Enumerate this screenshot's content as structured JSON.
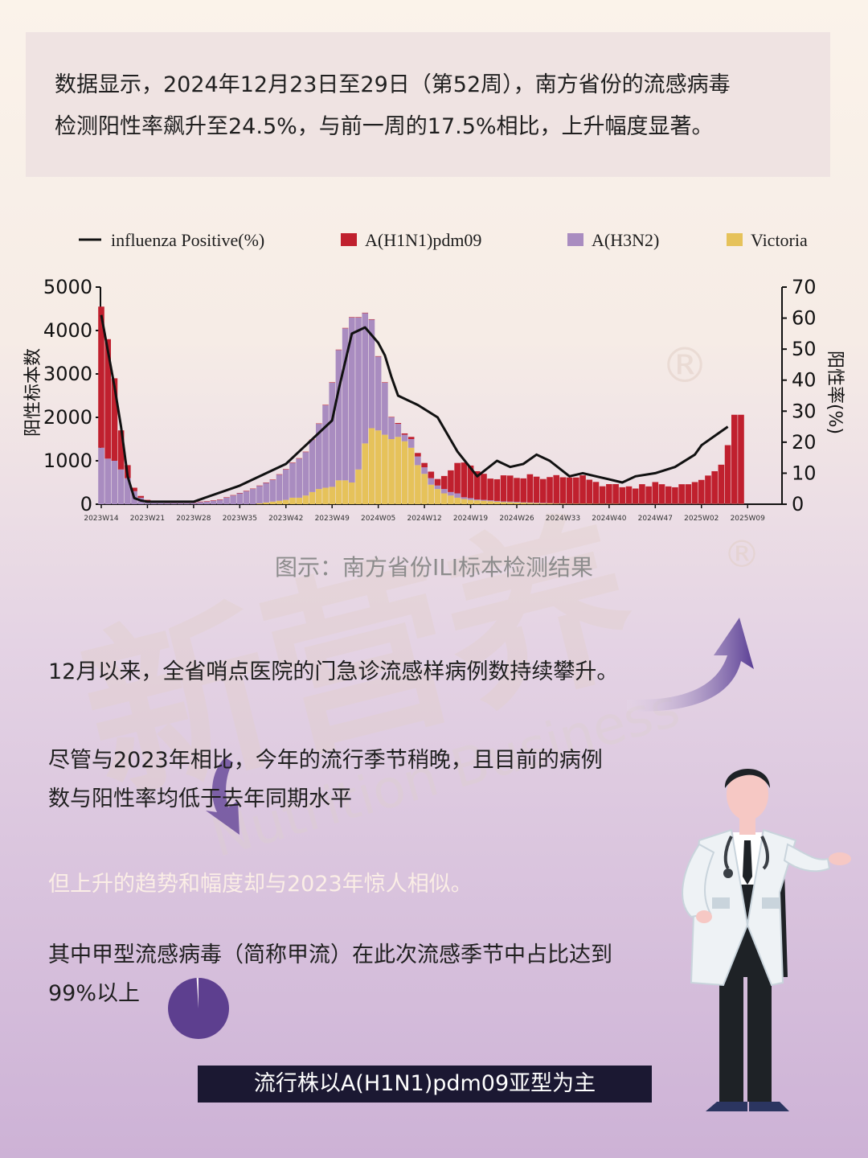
{
  "intro": {
    "line1": "数据显示，2024年12月23日至29日（第52周），南方省份的流感病毒",
    "line2": "检测阳性率飙升至24.5%，与前一周的17.5%相比，上升幅度显著。"
  },
  "caption": "图示：南方省份ILI标本检测结果",
  "paragraphs": {
    "p1": "12月以来，全省哨点医院的门急诊流感样病例数持续攀升。",
    "p2_line1": "尽管与2023年相比，今年的流行季节稍晚，且目前的病例",
    "p2_line2": "数与阳性率均低于去年同期水平",
    "p3": "但上升的趋势和幅度却与2023年惊人相似。",
    "p4_line1": "其中甲型流感病毒（简称甲流）在此次流感季节中占比达到",
    "p4_line2": "99%以上"
  },
  "tagline": "流行株以A(H1N1)pdm09亚型为主",
  "pie": {
    "share_percent": 99,
    "color": "#5d3f8f"
  },
  "watermark": {
    "brand_cn": "新营养",
    "brand_en": "Nutrition Business",
    "mark": "®"
  },
  "icons": {
    "doctor": "doctor-illustration",
    "arrow_up": "curved-arrow-up-icon",
    "arrow_down": "curved-arrow-down-icon"
  },
  "chart_data": {
    "type": "bar",
    "stacked": true,
    "legend": [
      "influenza Positive(%)",
      "A(H1N1)pdm09",
      "A(H3N2)",
      "Victoria"
    ],
    "legend_placement": "top",
    "ylabel": "阳性标本数",
    "y2label": "阳性率(%)",
    "ylim": [
      0,
      5000
    ],
    "y2lim": [
      0,
      70
    ],
    "yticks": [
      "0",
      "1000",
      "2000",
      "3000",
      "4000",
      "5000"
    ],
    "y2ticks": [
      "0",
      "10",
      "20",
      "30",
      "40",
      "50",
      "60",
      "70"
    ],
    "xlabels": [
      "2023W14",
      "2023W21",
      "2023W28",
      "2023W35",
      "2023W42",
      "2023W49",
      "2024W05",
      "2024W12",
      "2024W19",
      "2024W26",
      "2024W33",
      "2024W40",
      "2024W47",
      "2025W02",
      "2025W09"
    ],
    "colors": {
      "A(H1N1)pdm09": "#c0202e",
      "A(H3N2)": "#a98cc0",
      "Victoria": "#e6c25a",
      "line": "#111111"
    },
    "h1n1": [
      3250,
      2750,
      1900,
      900,
      300,
      80,
      40,
      20,
      15,
      12,
      12,
      10,
      10,
      10,
      10,
      10,
      10,
      10,
      10,
      10,
      10,
      10,
      10,
      10,
      10,
      10,
      10,
      10,
      10,
      10,
      10,
      10,
      10,
      10,
      10,
      10,
      10,
      10,
      10,
      10,
      10,
      10,
      10,
      10,
      10,
      20,
      30,
      50,
      80,
      100,
      150,
      150,
      300,
      500,
      700,
      800,
      750,
      650,
      600,
      500,
      500,
      600,
      600,
      550,
      550,
      650,
      600,
      550,
      600,
      650,
      600,
      600,
      600,
      650,
      550,
      500,
      400,
      450,
      450,
      380,
      400,
      350,
      450,
      400,
      500,
      450,
      400,
      380,
      450,
      450,
      500,
      550,
      650,
      750,
      900,
      1350,
      2050,
      2050
    ],
    "h3n2": [
      1300,
      1050,
      1000,
      800,
      600,
      300,
      150,
      80,
      60,
      40,
      30,
      30,
      30,
      30,
      30,
      50,
      60,
      80,
      100,
      150,
      200,
      250,
      300,
      350,
      400,
      450,
      500,
      600,
      700,
      800,
      900,
      1000,
      1200,
      1500,
      1900,
      2400,
      3000,
      3500,
      3800,
      3500,
      3000,
      2500,
      1700,
      1200,
      500,
      300,
      150,
      200,
      200,
      150,
      150,
      80,
      100,
      80,
      100,
      40,
      40,
      20,
      20,
      20,
      15,
      15,
      15,
      15,
      10,
      10,
      10,
      10,
      5,
      5,
      5,
      5,
      5,
      5,
      5,
      5,
      5,
      5,
      5,
      5,
      5,
      5,
      5,
      5,
      5,
      5,
      5,
      5,
      5,
      5,
      5,
      5,
      5,
      5,
      5,
      5,
      5,
      5
    ],
    "victoria": [
      0,
      0,
      0,
      0,
      0,
      0,
      0,
      0,
      0,
      0,
      0,
      0,
      0,
      0,
      0,
      0,
      0,
      0,
      0,
      0,
      0,
      0,
      0,
      0,
      20,
      40,
      60,
      80,
      100,
      150,
      150,
      200,
      280,
      350,
      380,
      400,
      550,
      550,
      500,
      800,
      1400,
      1750,
      1700,
      1600,
      1500,
      1550,
      1450,
      1300,
      900,
      700,
      450,
      350,
      250,
      200,
      150,
      120,
      100,
      90,
      80,
      70,
      60,
      50,
      45,
      40,
      35,
      30,
      25,
      20,
      20,
      15,
      15,
      10,
      10,
      10,
      10,
      8,
      8,
      8,
      8,
      6,
      6,
      6,
      6,
      5,
      5,
      5,
      5,
      5,
      5,
      5,
      5,
      5,
      5,
      5,
      5,
      5,
      5,
      5
    ],
    "positive_line": {
      "x_index": [
        0,
        2,
        3,
        4,
        5,
        6,
        7,
        14,
        21,
        28,
        35,
        36,
        38,
        40,
        42,
        43,
        44,
        45,
        46,
        48,
        51,
        54,
        57,
        60,
        62,
        64,
        66,
        68,
        71,
        73,
        75,
        77,
        79,
        81,
        84,
        87,
        90,
        91,
        93,
        95
      ],
      "values": [
        61,
        38,
        25,
        9,
        2,
        1.2,
        0.8,
        0.8,
        6,
        13,
        27,
        37,
        55,
        57,
        52,
        48,
        41,
        35,
        34,
        32,
        28,
        17,
        9,
        14,
        12,
        13,
        16,
        14,
        9,
        10,
        9,
        8,
        7,
        9,
        10,
        12,
        16,
        19,
        22,
        25
      ]
    }
  }
}
